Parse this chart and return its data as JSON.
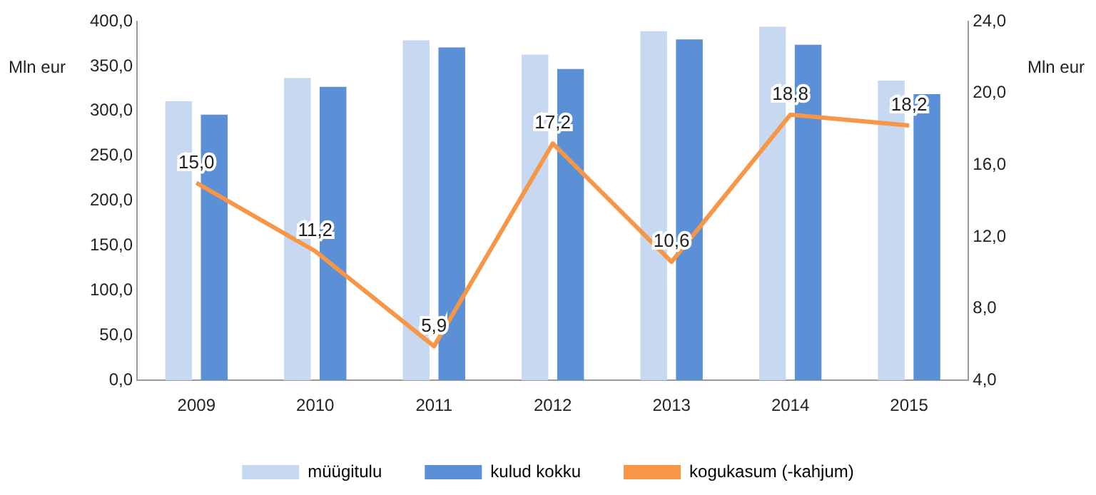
{
  "chart_data": {
    "type": "bar",
    "ylabel": "Mln eur",
    "y2label": "Mln eur",
    "categories": [
      "2009",
      "2010",
      "2011",
      "2012",
      "2013",
      "2014",
      "2015"
    ],
    "series": [
      {
        "name": "müügitulu",
        "color": "#c6d9f1",
        "values": [
          311,
          337,
          379,
          363,
          389,
          394,
          334
        ]
      },
      {
        "name": "kulud kokku",
        "color": "#5b8fd6",
        "values": [
          296,
          327,
          371,
          347,
          380,
          374,
          319
        ]
      },
      {
        "name": "kogukasum (-kahjum)",
        "type": "line",
        "axis": "y2",
        "color": "#f79646",
        "marker": "none",
        "values": [
          15.0,
          11.2,
          5.9,
          17.2,
          10.6,
          18.8,
          18.2
        ],
        "value_labels": [
          "15,0",
          "11,2",
          "5,9",
          "17,2",
          "10,6",
          "18,8",
          "18,2"
        ]
      }
    ],
    "ylim": [
      0,
      400
    ],
    "yticks": [
      {
        "value": 0,
        "label": "0,0"
      },
      {
        "value": 50,
        "label": "50,0"
      },
      {
        "value": 100,
        "label": "100,0"
      },
      {
        "value": 150,
        "label": "150,0"
      },
      {
        "value": 200,
        "label": "200,0"
      },
      {
        "value": 250,
        "label": "250,0"
      },
      {
        "value": 300,
        "label": "300,0"
      },
      {
        "value": 350,
        "label": "350,0"
      },
      {
        "value": 400,
        "label": "400,0"
      }
    ],
    "y2lim": [
      4,
      24
    ],
    "y2ticks": [
      {
        "value": 4,
        "label": "4,0"
      },
      {
        "value": 8,
        "label": "8,0"
      },
      {
        "value": 12,
        "label": "12,0"
      },
      {
        "value": 16,
        "label": "16,0"
      },
      {
        "value": 20,
        "label": "20,0"
      },
      {
        "value": 24,
        "label": "24,0"
      }
    ],
    "grid": false,
    "legend": "bottom"
  }
}
